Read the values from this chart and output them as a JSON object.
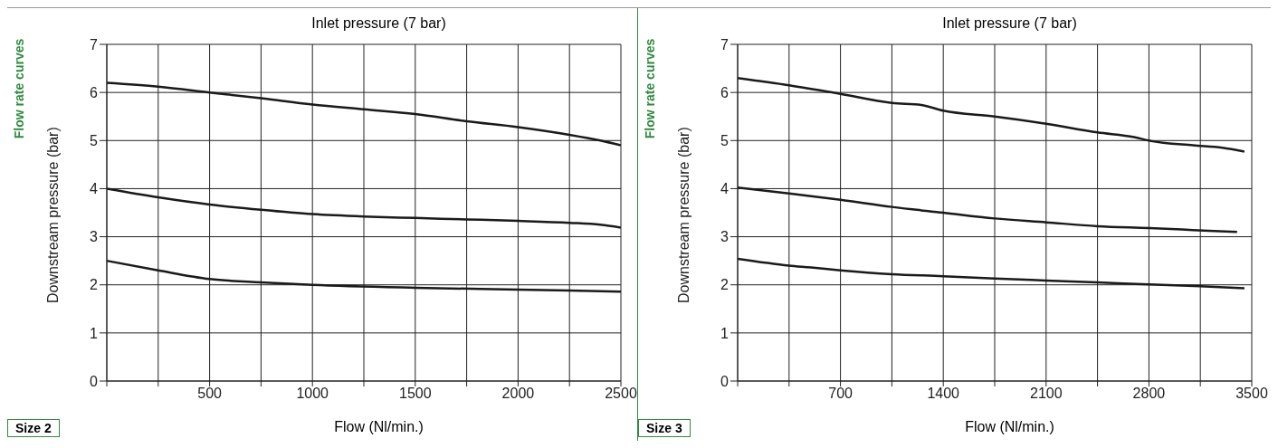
{
  "chart_data": [
    {
      "type": "line",
      "title": "Inlet pressure (7 bar)",
      "xlabel": "Flow (Nl/min.)",
      "ylabel": "Downstream pressure (bar)",
      "annotations": [
        "Flow rate curves",
        "Size 2"
      ],
      "xlim": [
        0,
        2500
      ],
      "ylim": [
        0,
        7
      ],
      "xticks": [
        {
          "value": 0,
          "label": null
        },
        {
          "value": 250,
          "label": null
        },
        500,
        {
          "value": 750,
          "label": null
        },
        1000,
        {
          "value": 1250,
          "label": null
        },
        1500,
        {
          "value": 1750,
          "label": null
        },
        2000,
        {
          "value": 2250,
          "label": null
        },
        2500
      ],
      "yticks": [
        0,
        1,
        2,
        3,
        4,
        5,
        6,
        7
      ],
      "grid": true,
      "legend": false,
      "marker": "none",
      "line_style": "solid",
      "series": [
        {
          "color": "#1a1a1a",
          "x": [
            0,
            250,
            500,
            750,
            1000,
            1250,
            1500,
            1750,
            2000,
            2250,
            2400,
            2500
          ],
          "values": [
            6.2,
            6.12,
            6.0,
            5.88,
            5.75,
            5.65,
            5.55,
            5.4,
            5.28,
            5.12,
            5.0,
            4.9
          ]
        },
        {
          "color": "#1a1a1a",
          "x": [
            0,
            250,
            500,
            750,
            1000,
            1250,
            1500,
            1750,
            2000,
            2250,
            2400,
            2500
          ],
          "values": [
            4.0,
            3.82,
            3.67,
            3.56,
            3.47,
            3.42,
            3.39,
            3.36,
            3.33,
            3.29,
            3.25,
            3.19
          ]
        },
        {
          "color": "#1a1a1a",
          "x": [
            0,
            250,
            500,
            750,
            1000,
            1500,
            2000,
            2500
          ],
          "values": [
            2.5,
            2.3,
            2.12,
            2.05,
            2.0,
            1.94,
            1.9,
            1.86
          ]
        }
      ]
    },
    {
      "type": "line",
      "title": "Inlet pressure (7 bar)",
      "xlabel": "Flow (Nl/min.)",
      "ylabel": "Downstream pressure (bar)",
      "annotations": [
        "Flow rate curves",
        "Size 3"
      ],
      "xlim": [
        0,
        3500
      ],
      "ylim": [
        0,
        7
      ],
      "xticks": [
        {
          "value": 0,
          "label": null
        },
        {
          "value": 350,
          "label": null
        },
        700,
        {
          "value": 1050,
          "label": null
        },
        1400,
        {
          "value": 1750,
          "label": null
        },
        2100,
        {
          "value": 2450,
          "label": null
        },
        2800,
        {
          "value": 3150,
          "label": null
        },
        3500
      ],
      "yticks": [
        0,
        1,
        2,
        3,
        4,
        5,
        6,
        7
      ],
      "grid": true,
      "legend": false,
      "marker": "none",
      "line_style": "solid",
      "series": [
        {
          "color": "#1a1a1a",
          "x": [
            0,
            350,
            700,
            1050,
            1250,
            1400,
            1750,
            2100,
            2450,
            2700,
            2800,
            3100,
            3300,
            3450
          ],
          "values": [
            6.3,
            6.15,
            5.97,
            5.78,
            5.74,
            5.62,
            5.5,
            5.35,
            5.17,
            5.07,
            5.0,
            4.9,
            4.85,
            4.77
          ]
        },
        {
          "color": "#1a1a1a",
          "x": [
            0,
            350,
            700,
            1050,
            1400,
            1750,
            2100,
            2450,
            2800,
            3100,
            3400
          ],
          "values": [
            4.02,
            3.9,
            3.77,
            3.62,
            3.5,
            3.38,
            3.3,
            3.22,
            3.18,
            3.14,
            3.1
          ]
        },
        {
          "color": "#1a1a1a",
          "x": [
            0,
            350,
            500,
            700,
            1050,
            1400,
            1750,
            2100,
            2450,
            2800,
            3150,
            3450
          ],
          "values": [
            2.54,
            2.4,
            2.36,
            2.3,
            2.22,
            2.18,
            2.13,
            2.09,
            2.05,
            2.01,
            1.97,
            1.93
          ]
        }
      ]
    }
  ]
}
